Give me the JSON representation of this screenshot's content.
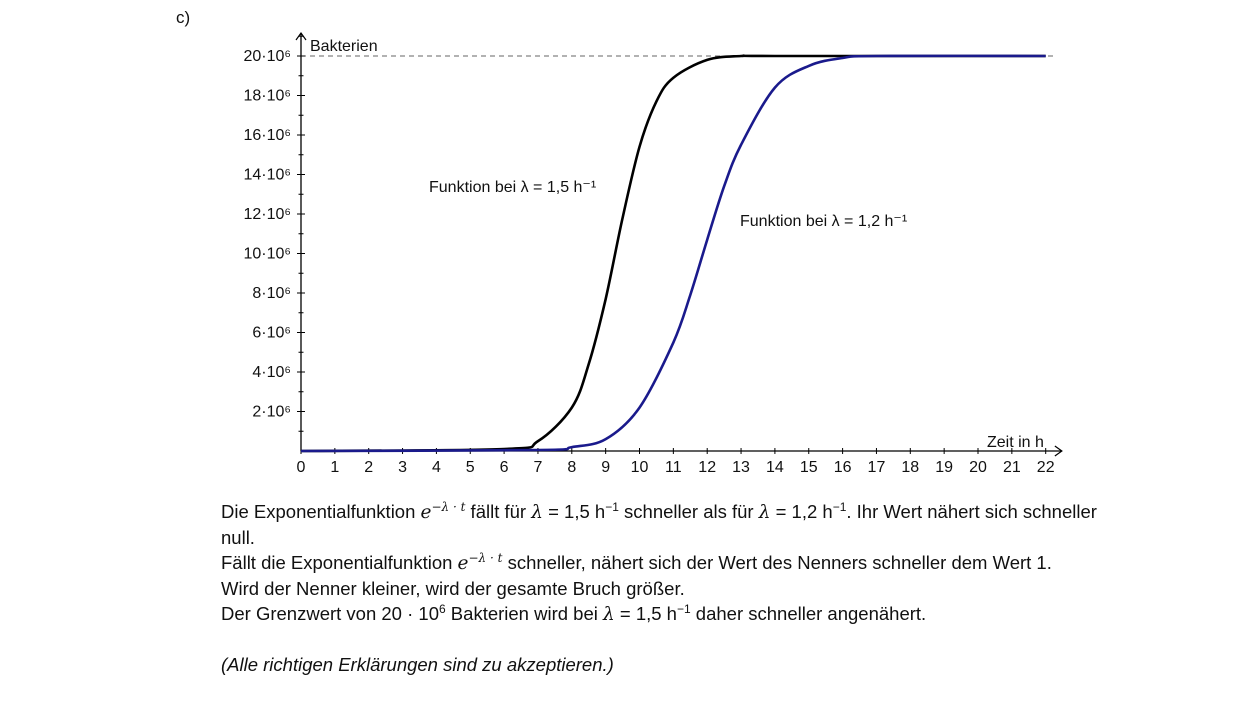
{
  "part_label": "c)",
  "chart_data": {
    "type": "line",
    "ylabel": "Bakterien",
    "xlabel": "Zeit in h",
    "xlim": [
      0,
      22.3
    ],
    "ylim": [
      0,
      21.5
    ],
    "x_ticks": [
      0,
      1,
      2,
      3,
      4,
      5,
      6,
      7,
      8,
      9,
      10,
      11,
      12,
      13,
      14,
      15,
      16,
      17,
      18,
      19,
      20,
      21,
      22
    ],
    "x_tick_labels": [
      "0",
      "1",
      "2",
      "3",
      "4",
      "5",
      "6",
      "7",
      "8",
      "9",
      "10",
      "11",
      "12",
      "13",
      "14",
      "15",
      "16",
      "17",
      "18",
      "19",
      "20",
      "21",
      "22"
    ],
    "y_ticks": [
      2,
      4,
      6,
      8,
      10,
      12,
      14,
      16,
      18,
      20
    ],
    "y_tick_labels": [
      "2·10⁶",
      "4·10⁶",
      "6·10⁶",
      "8·10⁶",
      "10·10⁶",
      "12·10⁶",
      "14·10⁶",
      "16·10⁶",
      "18·10⁶",
      "20·10⁶"
    ],
    "y_unit_multiplier": 1000000,
    "asymptote": {
      "y": 20,
      "style": "dashed"
    },
    "series": [
      {
        "name": "Funktion bei λ = 1,5 h⁻¹",
        "color": "#000000",
        "lambda": 1.5,
        "x": [
          0,
          6,
          7,
          8,
          8.5,
          9,
          9.5,
          10,
          10.5,
          11,
          12,
          13,
          14,
          22
        ],
        "y": [
          0,
          0.1,
          0.5,
          2.2,
          4.4,
          7.7,
          11.8,
          15.4,
          17.7,
          18.9,
          19.8,
          20,
          20,
          20
        ]
      },
      {
        "name": "Funktion bei λ = 1,2 h⁻¹",
        "color": "#1a1a8c",
        "lambda": 1.2,
        "x": [
          0,
          7,
          8,
          9,
          10,
          11,
          11.5,
          12,
          12.5,
          13,
          14,
          15,
          16,
          17,
          22
        ],
        "y": [
          0,
          0.05,
          0.2,
          0.6,
          2.2,
          5.5,
          7.9,
          10.7,
          13.4,
          15.5,
          18.4,
          19.5,
          19.9,
          20,
          20
        ]
      }
    ]
  },
  "explanation": {
    "l1_a": "Die Exponentialfunktion ",
    "exp": "e",
    "exp_sup": "−λ · t",
    "l1_b": " fällt für ",
    "lambda": "λ",
    "l1_c": " = 1,5 h",
    "minus1": "−1",
    "l1_d": " schneller als für ",
    "l1_e": " = 1,2 h",
    "l1_f": ". Ihr Wert nähert sich schneller null.",
    "l2_a": "Fällt die Exponentialfunktion ",
    "l2_b": " schneller, nähert sich der Wert des Nenners schneller dem Wert 1.",
    "l3": "Wird der Nenner kleiner, wird der gesamte Bruch größer.",
    "l4_a": "Der Grenzwert von 20 · 10",
    "six": "6",
    "l4_b": " Bakterien wird bei ",
    "l4_c": " = 1,5 h",
    "l4_d": " daher schneller angenähert.",
    "note": "(Alle richtigen Erklärungen sind zu akzeptieren.)"
  }
}
